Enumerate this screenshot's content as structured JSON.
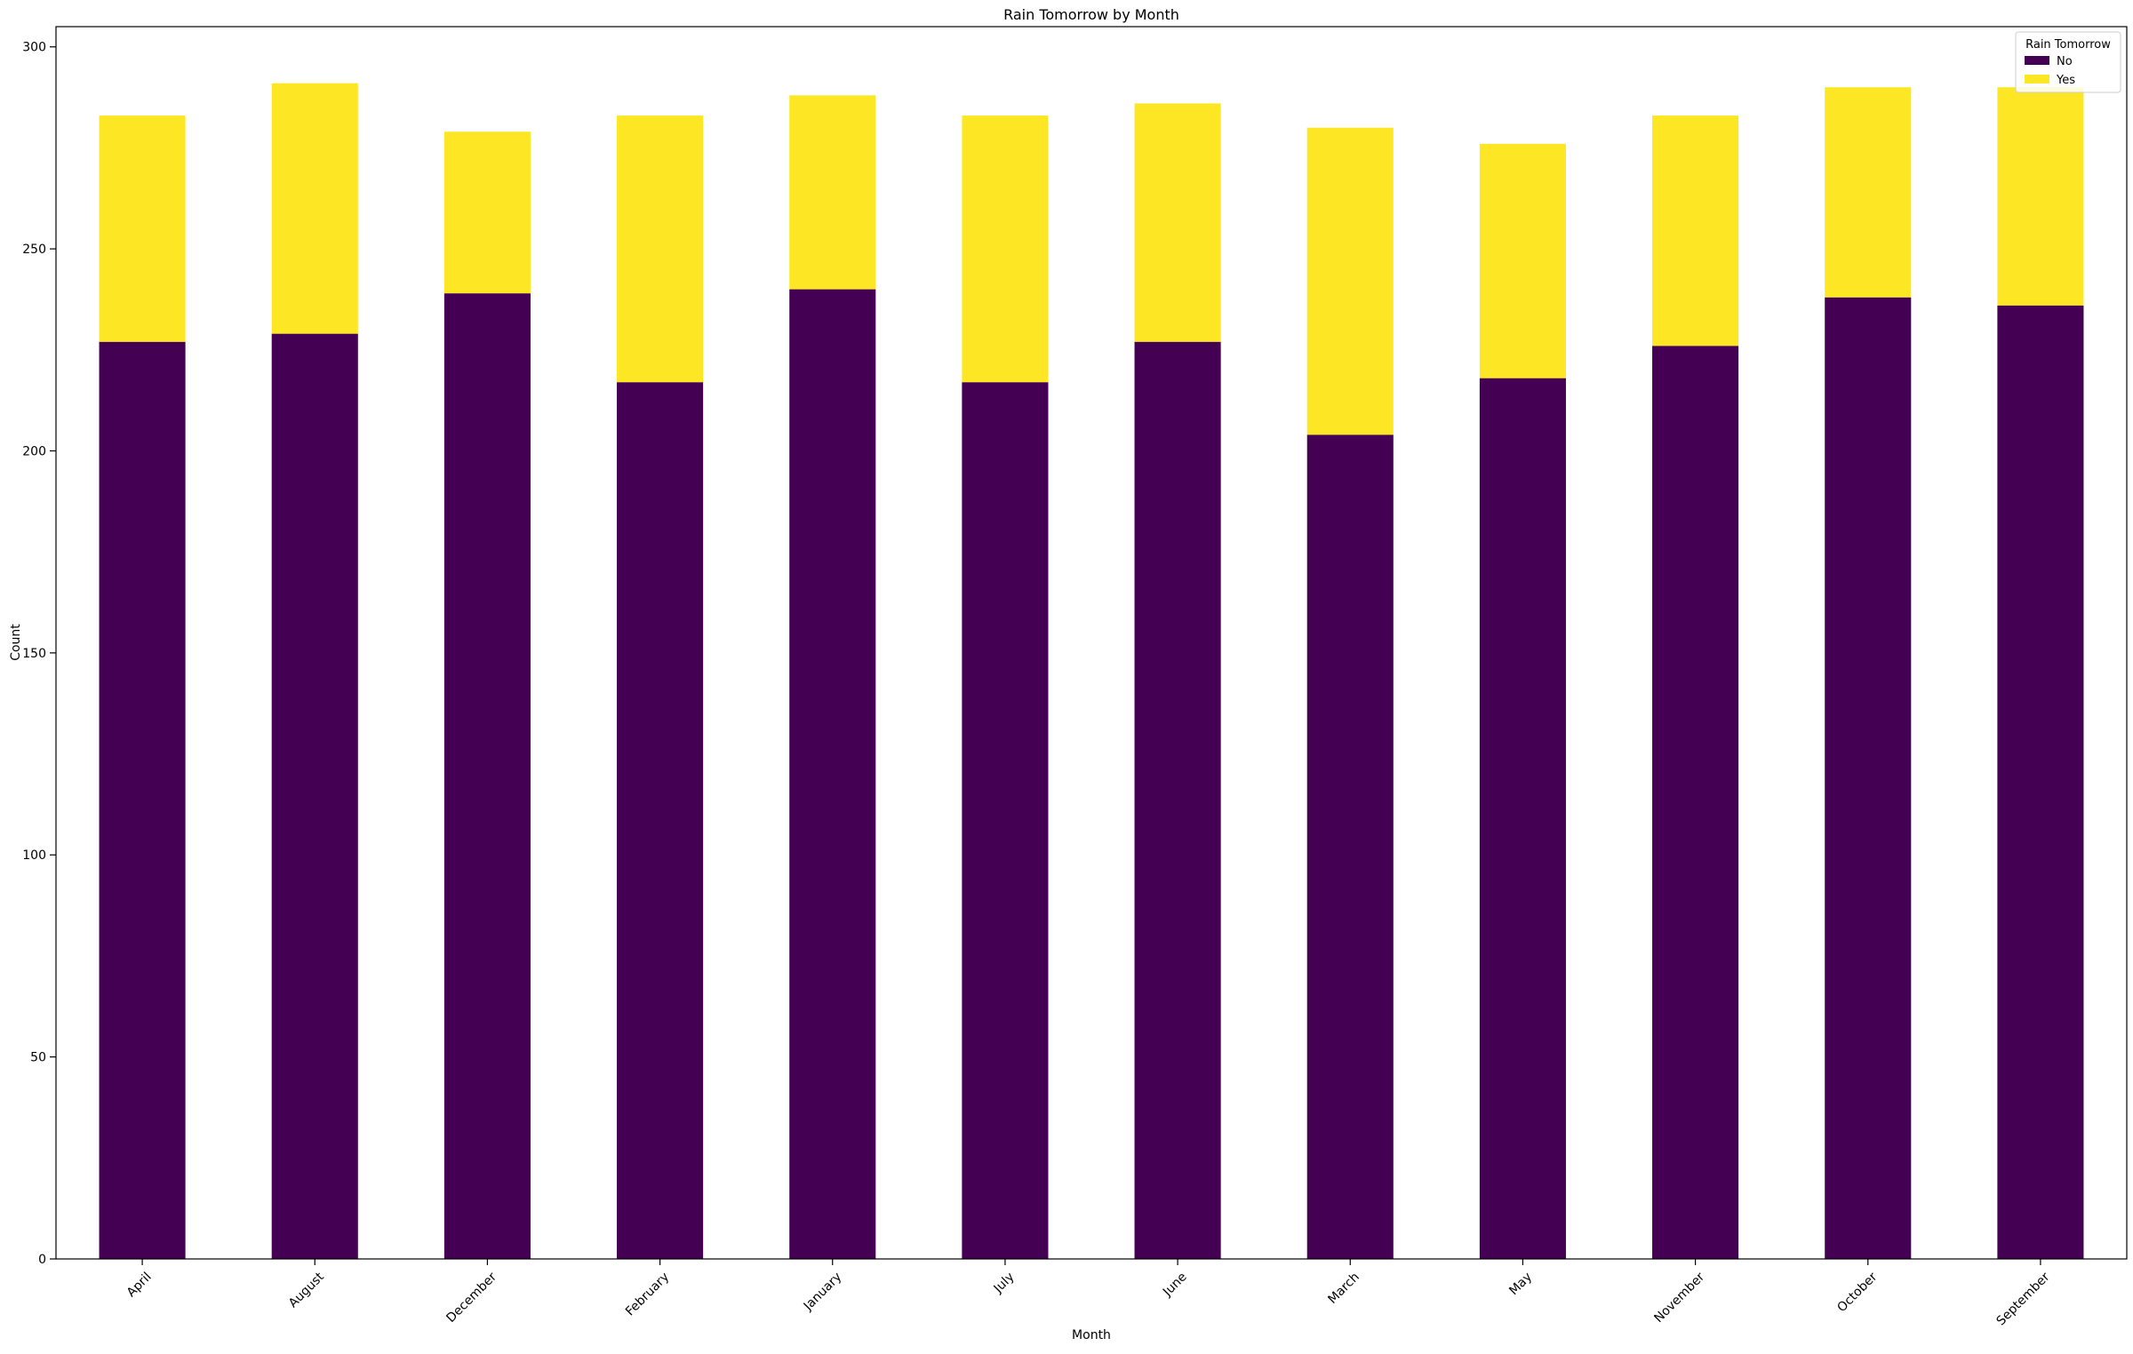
{
  "chart_data": {
    "type": "bar",
    "stacked": true,
    "title": "Rain Tomorrow by Month",
    "xlabel": "Month",
    "ylabel": "Count",
    "ylim": [
      0,
      305
    ],
    "yticks": [
      0,
      50,
      100,
      150,
      200,
      250,
      300
    ],
    "grid": false,
    "legend": {
      "title": "Rain Tomorrow",
      "placement": "top-right"
    },
    "categories": [
      "April",
      "August",
      "December",
      "February",
      "January",
      "July",
      "June",
      "March",
      "May",
      "November",
      "October",
      "September"
    ],
    "series": [
      {
        "name": "No",
        "color": "#440154",
        "values": [
          227,
          229,
          239,
          217,
          240,
          217,
          227,
          204,
          218,
          226,
          238,
          236
        ]
      },
      {
        "name": "Yes",
        "color": "#fde725",
        "values": [
          56,
          62,
          40,
          66,
          48,
          66,
          59,
          76,
          58,
          57,
          52,
          54
        ]
      }
    ]
  }
}
